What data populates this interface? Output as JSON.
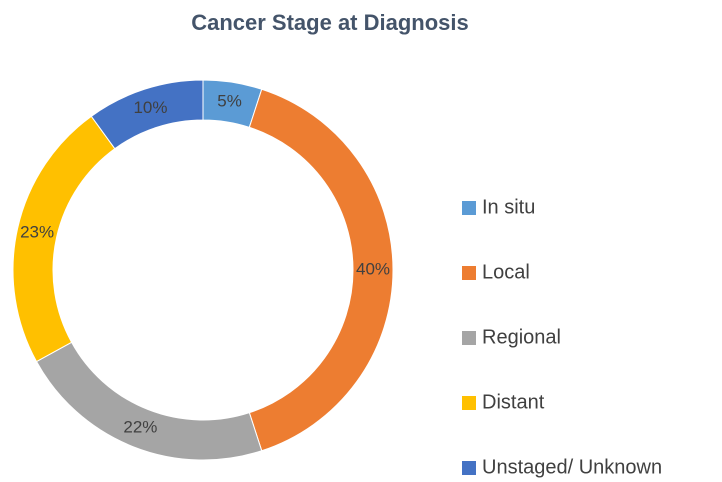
{
  "chart_data": {
    "type": "donut",
    "title": "Cancer Stage at Diagnosis",
    "categories": [
      "In situ",
      "Local",
      "Regional",
      "Distant",
      "Unstaged/ Unknown"
    ],
    "values": [
      5,
      40,
      22,
      23,
      10
    ],
    "value_labels": [
      "5%",
      "40%",
      "22%",
      "23%",
      "10%"
    ],
    "colors": [
      "#5b9bd5",
      "#ed7d31",
      "#a5a5a5",
      "#ffc000",
      "#4472c4"
    ],
    "legend": "right"
  }
}
